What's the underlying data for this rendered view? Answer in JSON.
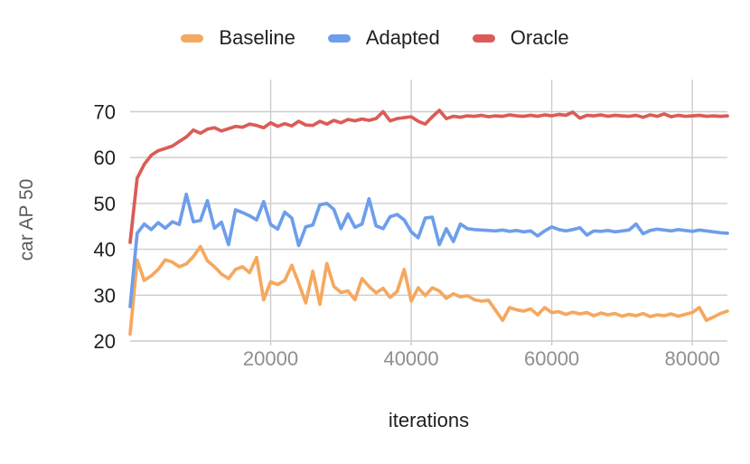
{
  "legend": {
    "items": [
      {
        "label": "Baseline",
        "color": "#F5A85F"
      },
      {
        "label": "Adapted",
        "color": "#6D9EEB"
      },
      {
        "label": "Oracle",
        "color": "#DB5C56"
      }
    ]
  },
  "colors": {
    "gridline": "#cccccc",
    "y_tick_text": "#1f1f1f",
    "x_tick_text": "#8f8f8f",
    "background": "#ffffff"
  },
  "chart_data": {
    "type": "line",
    "title": "",
    "xlabel": "iterations",
    "ylabel": "car AP 50",
    "xlim": [
      0,
      85000
    ],
    "ylim": [
      20,
      77
    ],
    "xticks": [
      20000,
      40000,
      60000,
      80000
    ],
    "yticks": [
      20,
      30,
      40,
      50,
      60,
      70
    ],
    "grid": true,
    "legend_position": "top",
    "x_start": 0,
    "x_step": 1000,
    "series": [
      {
        "name": "Baseline",
        "color": "#F5A85F",
        "values": [
          21.5,
          37.7,
          33.2,
          34.2,
          35.6,
          37.7,
          37.2,
          36.2,
          36.8,
          38.4,
          40.6,
          37.5,
          36.2,
          34.6,
          33.6,
          35.6,
          36.2,
          34.9,
          38.2,
          29.0,
          32.9,
          32.3,
          33.2,
          36.5,
          32.6,
          28.3,
          35.2,
          28.0,
          36.9,
          31.9,
          30.6,
          30.9,
          29.0,
          33.6,
          31.9,
          30.5,
          31.5,
          29.5,
          30.8,
          35.6,
          28.7,
          31.6,
          29.9,
          31.6,
          30.9,
          29.3,
          30.3,
          29.6,
          29.9,
          29.0,
          28.7,
          28.9,
          26.7,
          24.5,
          27.3,
          26.8,
          26.5,
          27.0,
          25.7,
          27.3,
          26.2,
          26.4,
          25.8,
          26.3,
          25.9,
          26.2,
          25.5,
          26.1,
          25.7,
          26.0,
          25.4,
          25.8,
          25.5,
          26.0,
          25.3,
          25.7,
          25.5,
          25.9,
          25.4,
          25.8,
          26.2,
          27.3,
          24.5,
          25.2,
          26.0,
          26.5
        ]
      },
      {
        "name": "Adapted",
        "color": "#6D9EEB",
        "values": [
          27.5,
          43.5,
          45.5,
          44.3,
          45.8,
          44.6,
          46.0,
          45.4,
          52.0,
          46.0,
          46.3,
          50.6,
          44.6,
          45.9,
          41.0,
          48.6,
          48.0,
          47.3,
          46.4,
          50.4,
          45.4,
          44.4,
          48.1,
          46.8,
          40.8,
          44.9,
          45.3,
          49.7,
          50.0,
          48.7,
          44.5,
          47.7,
          44.8,
          45.5,
          51.0,
          45.1,
          44.5,
          47.1,
          47.6,
          46.4,
          43.8,
          42.5,
          46.8,
          47.0,
          41.0,
          44.5,
          41.7,
          45.5,
          44.5,
          44.3,
          44.2,
          44.1,
          44.0,
          44.2,
          43.9,
          44.1,
          43.8,
          44.0,
          42.9,
          44.0,
          44.9,
          44.3,
          44.0,
          44.3,
          44.7,
          43.1,
          44.0,
          43.9,
          44.1,
          43.8,
          44.0,
          44.2,
          45.5,
          43.4,
          44.1,
          44.4,
          44.2,
          44.0,
          44.3,
          44.1,
          43.9,
          44.2,
          44.0,
          43.8,
          43.6,
          43.5
        ]
      },
      {
        "name": "Oracle",
        "color": "#DB5C56",
        "values": [
          41.5,
          55.5,
          58.5,
          60.5,
          61.5,
          62.0,
          62.5,
          63.5,
          64.5,
          66.0,
          65.3,
          66.2,
          66.5,
          65.8,
          66.3,
          66.8,
          66.6,
          67.3,
          67.0,
          66.5,
          67.6,
          66.8,
          67.4,
          66.9,
          67.9,
          67.1,
          67.0,
          67.9,
          67.3,
          68.1,
          67.6,
          68.3,
          68.0,
          68.4,
          68.1,
          68.5,
          70.0,
          68.0,
          68.5,
          68.7,
          68.9,
          67.9,
          67.3,
          68.9,
          70.3,
          68.5,
          69.0,
          68.8,
          69.1,
          69.0,
          69.2,
          68.9,
          69.1,
          69.0,
          69.3,
          69.1,
          69.0,
          69.2,
          69.0,
          69.3,
          69.1,
          69.4,
          69.2,
          69.9,
          68.6,
          69.2,
          69.1,
          69.3,
          69.0,
          69.2,
          69.1,
          69.0,
          69.2,
          68.8,
          69.3,
          69.0,
          69.5,
          68.9,
          69.2,
          69.0,
          69.1,
          69.2,
          69.0,
          69.1,
          69.0,
          69.1
        ]
      }
    ]
  },
  "axes": {
    "x_tick_labels": [
      "20000",
      "40000",
      "60000",
      "80000"
    ],
    "y_tick_labels": [
      "20",
      "30",
      "40",
      "50",
      "60",
      "70"
    ],
    "xlabel": "iterations",
    "ylabel": "car AP 50"
  }
}
